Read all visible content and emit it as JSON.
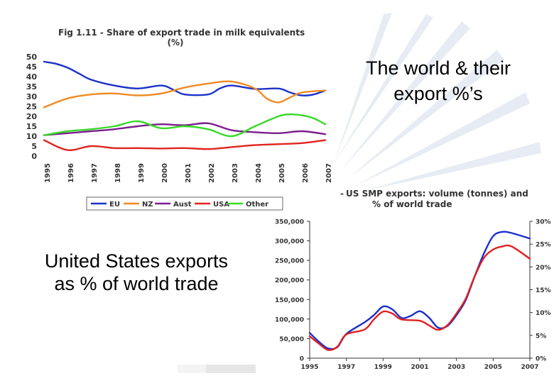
{
  "slide": {
    "heading_right_line1": "The world & their",
    "heading_right_line2": "export %’s",
    "caption_left_line1": "United States exports",
    "caption_left_line2": "as % of world trade"
  },
  "chart_data": [
    {
      "type": "line",
      "title": "Fig 1.11 - Share of export trade in milk equivalents",
      "subtitle": "(%)",
      "x": [
        "1995",
        "1996",
        "1997",
        "1998",
        "1999",
        "2000",
        "2001",
        "2002",
        "2003",
        "2004",
        "2005",
        "2006",
        "2007"
      ],
      "ylim": [
        0,
        50
      ],
      "yticks": [
        0,
        5,
        10,
        15,
        20,
        25,
        30,
        35,
        40,
        45,
        50
      ],
      "legend_position": "bottom",
      "grid": false,
      "series": [
        {
          "name": "EU",
          "color": "#1a32c8",
          "points": [
            [
              1995,
              47.5
            ],
            [
              1995.5,
              46.5
            ],
            [
              1996,
              44.5
            ],
            [
              1996.5,
              41.5
            ],
            [
              1997,
              38.5
            ],
            [
              1998,
              35.5
            ],
            [
              1999,
              34
            ],
            [
              2000,
              35.5
            ],
            [
              2000.5,
              33.5
            ],
            [
              2001,
              31
            ],
            [
              2002,
              31
            ],
            [
              2002.5,
              34
            ],
            [
              2003,
              35.5
            ],
            [
              2004,
              33.8
            ],
            [
              2005,
              34
            ],
            [
              2005.5,
              32
            ],
            [
              2006,
              30.5
            ],
            [
              2006.5,
              31
            ],
            [
              2007,
              33
            ]
          ]
        },
        {
          "name": "NZ",
          "color": "#f08a24",
          "points": [
            [
              1995,
              24.5
            ],
            [
              1996,
              29
            ],
            [
              1997,
              31
            ],
            [
              1998,
              31.5
            ],
            [
              1999,
              30.5
            ],
            [
              2000,
              31.5
            ],
            [
              2001,
              34.5
            ],
            [
              2002,
              36.5
            ],
            [
              2003,
              37.5
            ],
            [
              2004,
              34
            ],
            [
              2004.5,
              29
            ],
            [
              2005,
              27
            ],
            [
              2005.5,
              29.5
            ],
            [
              2006,
              32
            ],
            [
              2007,
              33
            ]
          ]
        },
        {
          "name": "Aust",
          "color": "#7a1f8c",
          "points": [
            [
              1995,
              10.5
            ],
            [
              1996,
              11.5
            ],
            [
              1997,
              12.5
            ],
            [
              1998,
              13.5
            ],
            [
              1999,
              15
            ],
            [
              2000,
              16
            ],
            [
              2001,
              15.5
            ],
            [
              2002,
              16.5
            ],
            [
              2003,
              13
            ],
            [
              2004,
              12
            ],
            [
              2005,
              11.5
            ],
            [
              2006,
              12.5
            ],
            [
              2007,
              11
            ]
          ]
        },
        {
          "name": "USA",
          "color": "#e0241e",
          "points": [
            [
              1995,
              8
            ],
            [
              1996,
              3
            ],
            [
              1997,
              5
            ],
            [
              1998,
              4
            ],
            [
              1999,
              4
            ],
            [
              2000,
              3.8
            ],
            [
              2001,
              4
            ],
            [
              2002,
              3.5
            ],
            [
              2003,
              4.5
            ],
            [
              2004,
              5.5
            ],
            [
              2005,
              6
            ],
            [
              2006,
              6.5
            ],
            [
              2007,
              8
            ]
          ]
        },
        {
          "name": "Other",
          "color": "#37d928",
          "points": [
            [
              1995,
              10.5
            ],
            [
              1996,
              12.5
            ],
            [
              1997,
              13.5
            ],
            [
              1998,
              15
            ],
            [
              1999,
              17.5
            ],
            [
              2000,
              14
            ],
            [
              2001,
              15
            ],
            [
              2002,
              13.5
            ],
            [
              2003,
              10
            ],
            [
              2004,
              15
            ],
            [
              2005,
              20
            ],
            [
              2005.5,
              21
            ],
            [
              2006,
              20.5
            ],
            [
              2006.5,
              19
            ],
            [
              2007,
              16
            ]
          ]
        }
      ]
    },
    {
      "type": "line",
      "title": "US SMP exports: volume (tonnes) and",
      "subtitle": "% of world trade",
      "title_marker": "-",
      "x_ticks": [
        "1995",
        "1997",
        "1999",
        "2001",
        "2003",
        "2005",
        "2007"
      ],
      "xlim": [
        1995,
        2007
      ],
      "y_left": {
        "ticks": [
          0,
          50000,
          100000,
          150000,
          200000,
          250000,
          300000,
          350000
        ],
        "labels": [
          "0",
          "50,000",
          "100,000",
          "150,000",
          "200,000",
          "250,000",
          "300,000",
          "350,000"
        ],
        "lim": [
          0,
          350000
        ]
      },
      "y_right": {
        "ticks": [
          0,
          5,
          10,
          15,
          20,
          25,
          30
        ],
        "labels": [
          "0%",
          "5%",
          "10%",
          "15%",
          "20%",
          "25%",
          "30%"
        ],
        "lim": [
          0,
          30
        ]
      },
      "series": [
        {
          "color": "#1a2fd0",
          "axis": "left",
          "points": [
            [
              1995,
              65000
            ],
            [
              1995.5,
              42000
            ],
            [
              1996,
              25000
            ],
            [
              1996.5,
              28000
            ],
            [
              1997,
              62000
            ],
            [
              1998,
              92000
            ],
            [
              1998.5,
              110000
            ],
            [
              1999,
              132000
            ],
            [
              1999.5,
              125000
            ],
            [
              2000,
              103000
            ],
            [
              2000.5,
              108000
            ],
            [
              2001,
              120000
            ],
            [
              2001.5,
              104000
            ],
            [
              2002,
              78000
            ],
            [
              2002.5,
              82000
            ],
            [
              2003,
              110000
            ],
            [
              2003.5,
              148000
            ],
            [
              2004,
              210000
            ],
            [
              2004.5,
              268000
            ],
            [
              2005,
              312000
            ],
            [
              2005.5,
              323000
            ],
            [
              2006,
              320000
            ],
            [
              2007,
              306000
            ]
          ]
        },
        {
          "color": "#e02020",
          "axis": "right",
          "points": [
            [
              1995,
              4.8
            ],
            [
              1995.5,
              3.2
            ],
            [
              1996,
              1.8
            ],
            [
              1996.5,
              2.5
            ],
            [
              1997,
              5.2
            ],
            [
              1998,
              6.3
            ],
            [
              1998.5,
              8.5
            ],
            [
              1999,
              10.2
            ],
            [
              1999.5,
              9.8
            ],
            [
              2000,
              8.5
            ],
            [
              2001,
              8.2
            ],
            [
              2001.5,
              7.2
            ],
            [
              2002,
              6.2
            ],
            [
              2002.5,
              7.2
            ],
            [
              2003,
              9.8
            ],
            [
              2003.5,
              13
            ],
            [
              2004,
              18
            ],
            [
              2004.5,
              22
            ],
            [
              2005,
              23.8
            ],
            [
              2005.5,
              24.5
            ],
            [
              2006,
              24.5
            ],
            [
              2007,
              21.8
            ]
          ]
        }
      ]
    }
  ]
}
